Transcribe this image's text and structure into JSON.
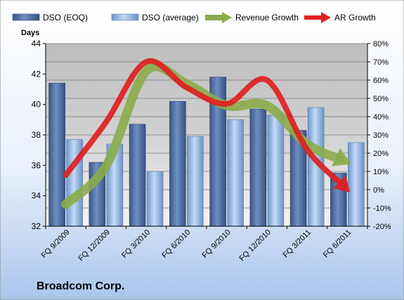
{
  "chart_data": {
    "type": "bar",
    "company": "Broadcom Corp.",
    "left_axis_title": "Days",
    "categories": [
      "FQ 9/2009",
      "FQ 12/2009",
      "FQ 3/2010",
      "FQ 6/2010",
      "FQ 9/2010",
      "FQ 12/2010",
      "FQ 3/2011",
      "FQ 6/2011"
    ],
    "series": [
      {
        "name": "DSO (EOQ)",
        "kind": "bar",
        "axis": "left",
        "values": [
          41.4,
          36.2,
          38.7,
          40.2,
          41.8,
          39.7,
          38.3,
          35.5
        ]
      },
      {
        "name": "DSO (average)",
        "kind": "bar",
        "axis": "left",
        "values": [
          37.7,
          37.4,
          35.6,
          37.9,
          39.0,
          39.3,
          39.8,
          37.5
        ]
      },
      {
        "name": "Revenue Growth",
        "kind": "arrow-line",
        "axis": "right",
        "values": [
          -8,
          13,
          65,
          58,
          46,
          46,
          25,
          15
        ]
      },
      {
        "name": "AR Growth",
        "kind": "arrow-line",
        "axis": "right",
        "values": [
          8,
          37,
          70,
          56,
          47,
          60,
          22,
          0
        ]
      }
    ],
    "left_axis": {
      "min": 32,
      "max": 44,
      "step": 2,
      "ticks": [
        "32",
        "34",
        "36",
        "38",
        "40",
        "42",
        "44"
      ]
    },
    "right_axis": {
      "min": -20,
      "max": 80,
      "step": 10,
      "ticks": [
        "-20%",
        "-10%",
        "0%",
        "10%",
        "20%",
        "30%",
        "40%",
        "50%",
        "60%",
        "70%",
        "80%"
      ]
    },
    "grid": true,
    "legend_position": "top",
    "colors": {
      "dso_eoq": "#4f6fa6",
      "dso_avg": "#8fb3e0",
      "revenue_growth": "#8aac4a",
      "ar_growth": "#e02020"
    }
  }
}
